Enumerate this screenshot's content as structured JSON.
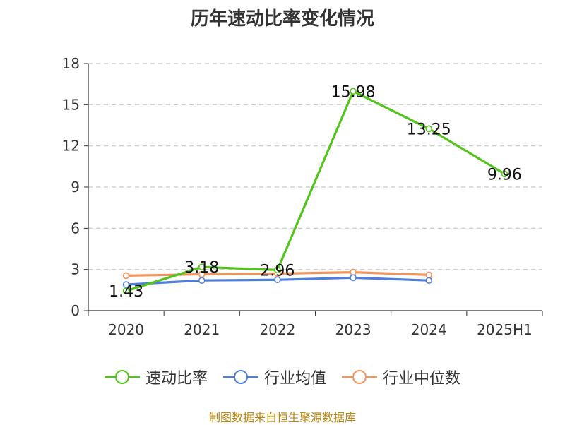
{
  "chart_data": {
    "type": "line",
    "title": "历年速动比率变化情况",
    "categories": [
      "2020",
      "2021",
      "2022",
      "2023",
      "2024",
      "2025H1"
    ],
    "ylim": [
      0,
      18
    ],
    "yticks": [
      0,
      3,
      6,
      9,
      12,
      15,
      18
    ],
    "grid": true,
    "legend_position": "bottom",
    "series": [
      {
        "name": "速动比率",
        "color": "#52c41a",
        "values": [
          1.43,
          3.18,
          2.96,
          15.98,
          13.25,
          9.96
        ],
        "labels": [
          "1.43",
          "3.18",
          "2.96",
          "15.98",
          "13.25",
          "9.96"
        ]
      },
      {
        "name": "行业均值",
        "color": "#4e7fdc",
        "values": [
          1.9,
          2.2,
          2.25,
          2.4,
          2.2,
          null
        ]
      },
      {
        "name": "行业中位数",
        "color": "#f4935b",
        "values": [
          2.55,
          2.65,
          2.7,
          2.8,
          2.6,
          null
        ]
      }
    ]
  },
  "source": "制图数据来自恒生聚源数据库"
}
